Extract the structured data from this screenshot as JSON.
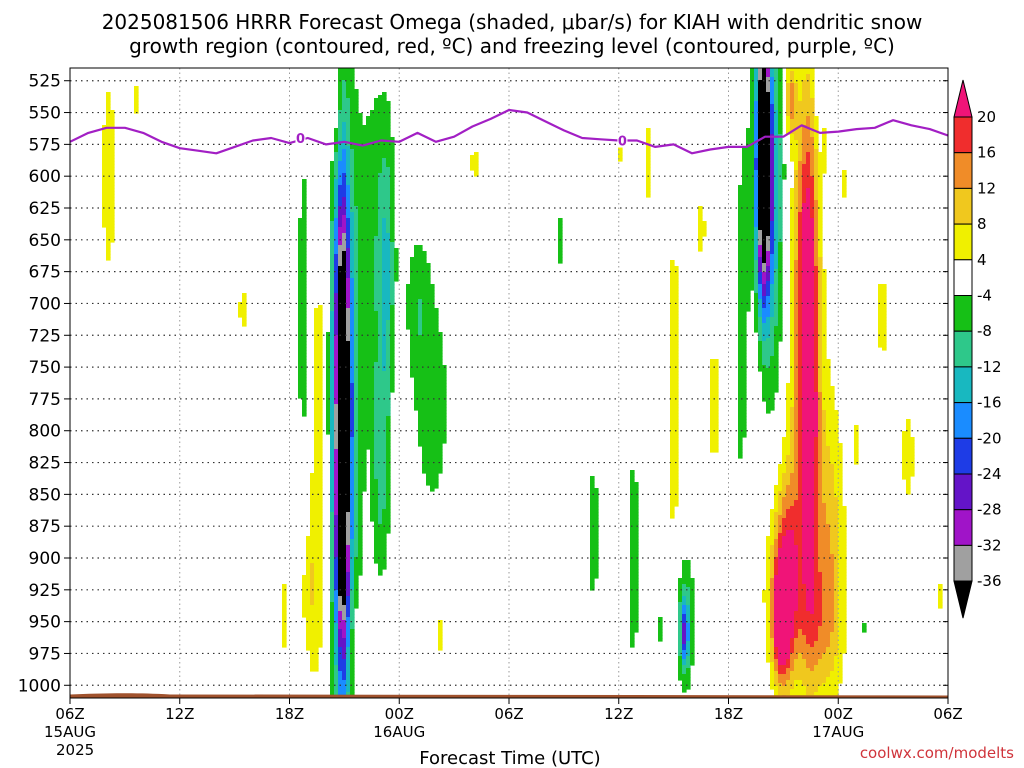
{
  "title": {
    "line1": "2025081506 HRRR Forecast Omega (shaded, μbar/s) for KIAH with dendritic snow",
    "line2": "growth region (contoured, red, ºC) and freezing level (contoured, purple, ºC)"
  },
  "credit": "coolwx.com/modelts",
  "colors": {
    "freezing_level": "#a21fc4",
    "ground": "#a0522d",
    "grid": "#333333"
  },
  "chart_data": {
    "type": "heatmap",
    "xlabel": "Forecast Time (UTC)",
    "ylabel": "",
    "x_ticks": [
      {
        "label": "06Z",
        "sub": "15AUG",
        "sub2": "2025",
        "hour": 0
      },
      {
        "label": "12Z",
        "sub": "",
        "sub2": "",
        "hour": 6
      },
      {
        "label": "18Z",
        "sub": "",
        "sub2": "",
        "hour": 12
      },
      {
        "label": "00Z",
        "sub": "16AUG",
        "sub2": "",
        "hour": 18
      },
      {
        "label": "06Z",
        "sub": "",
        "sub2": "",
        "hour": 24
      },
      {
        "label": "12Z",
        "sub": "",
        "sub2": "",
        "hour": 30
      },
      {
        "label": "18Z",
        "sub": "",
        "sub2": "",
        "hour": 36
      },
      {
        "label": "00Z",
        "sub": "17AUG",
        "sub2": "",
        "hour": 42
      },
      {
        "label": "06Z",
        "sub": "",
        "sub2": "",
        "hour": 48
      }
    ],
    "xlim": [
      0,
      48
    ],
    "y_ticks": [
      525,
      550,
      575,
      600,
      625,
      650,
      675,
      700,
      725,
      750,
      775,
      800,
      825,
      850,
      875,
      900,
      925,
      950,
      975,
      1000
    ],
    "ylim": [
      1010,
      515
    ],
    "y_units": "hPa",
    "colorbar": {
      "labels": [
        "20",
        "16",
        "12",
        "8",
        "4",
        "-4",
        "-8",
        "-12",
        "-16",
        "-20",
        "-24",
        "-28",
        "-32",
        "-36"
      ],
      "bins": [
        {
          "color": "#f0f000",
          "range": [
            4,
            8
          ]
        },
        {
          "color": "#f0c81e",
          "range": [
            8,
            12
          ]
        },
        {
          "color": "#f08c28",
          "range": [
            12,
            16
          ]
        },
        {
          "color": "#f02d2d",
          "range": [
            16,
            20
          ]
        },
        {
          "color": "#f01478",
          "range": [
            20,
            99
          ]
        },
        {
          "color": "#ffffff",
          "range": [
            -4,
            4
          ]
        },
        {
          "color": "#16c016",
          "range": [
            -8,
            -4
          ]
        },
        {
          "color": "#2ec88a",
          "range": [
            -12,
            -8
          ]
        },
        {
          "color": "#18b8c0",
          "range": [
            -16,
            -12
          ]
        },
        {
          "color": "#1a8cff",
          "range": [
            -20,
            -16
          ]
        },
        {
          "color": "#1e3ce6",
          "range": [
            -24,
            -20
          ]
        },
        {
          "color": "#6414c8",
          "range": [
            -28,
            -24
          ]
        },
        {
          "color": "#a014c8",
          "range": [
            -32,
            -28
          ]
        },
        {
          "color": "#a0a0a0",
          "range": [
            -36,
            -32
          ]
        },
        {
          "color": "#000000",
          "range": [
            -99,
            -36
          ]
        }
      ]
    },
    "omega_regions": [
      {
        "t": 2.1,
        "p": 600,
        "hw": 0.5,
        "hh": 110,
        "peak": 6
      },
      {
        "t": 3.6,
        "p": 540,
        "hw": 0.25,
        "hh": 25,
        "peak": 5
      },
      {
        "t": 9.5,
        "p": 705,
        "hw": 0.5,
        "hh": 30,
        "peak": 5
      },
      {
        "t": 11.7,
        "p": 945,
        "hw": 0.4,
        "hh": 55,
        "peak": 5
      },
      {
        "t": 12.8,
        "p": 705,
        "hw": 0.5,
        "hh": 190,
        "peak": -6
      },
      {
        "t": 13.3,
        "p": 810,
        "hw": 0.4,
        "hh": 230,
        "peak": 5
      },
      {
        "t": 13.0,
        "p": 925,
        "hw": 0.55,
        "hh": 60,
        "peak": 6
      },
      {
        "t": 13.8,
        "p": 800,
        "hw": 0.45,
        "hh": 240,
        "peak": 6
      },
      {
        "t": 15.0,
        "p": 770,
        "hw": 1.1,
        "hh": 250,
        "peak": -10
      },
      {
        "t": 14.9,
        "p": 790,
        "hw": 0.6,
        "hh": 210,
        "peak": -20
      },
      {
        "t": 14.9,
        "p": 810,
        "hw": 0.33,
        "hh": 165,
        "peak": -40
      },
      {
        "t": 16.8,
        "p": 640,
        "hw": 1.0,
        "hh": 145,
        "peak": -6
      },
      {
        "t": 17.0,
        "p": 830,
        "hw": 0.5,
        "hh": 100,
        "peak": -9
      },
      {
        "t": 17.3,
        "p": 680,
        "hw": 0.45,
        "hh": 110,
        "peak": -9
      },
      {
        "t": 14.4,
        "p": 550,
        "hw": 0.4,
        "hh": 35,
        "peak": 6
      },
      {
        "t": 16.5,
        "p": 955,
        "hw": 1.3,
        "hh": 30,
        "peak": 5
      },
      {
        "t": 18.0,
        "p": 770,
        "hw": 0.35,
        "hh": 50,
        "peak": 5
      },
      {
        "t": 19.8,
        "p": 780,
        "hw": 1.2,
        "hh": 110,
        "peak": -6
      },
      {
        "t": 19.0,
        "p": 700,
        "hw": 0.7,
        "hh": 60,
        "peak": -6
      },
      {
        "t": 21.1,
        "p": 845,
        "hw": 0.35,
        "hh": 30,
        "peak": 5
      },
      {
        "t": 20.2,
        "p": 960,
        "hw": 0.35,
        "hh": 30,
        "peak": 5
      },
      {
        "t": 22.1,
        "p": 590,
        "hw": 0.3,
        "hh": 30,
        "peak": 5
      },
      {
        "t": 26.8,
        "p": 650,
        "hw": 0.2,
        "hh": 30,
        "peak": -6
      },
      {
        "t": 28.6,
        "p": 880,
        "hw": 0.4,
        "hh": 75,
        "peak": -6
      },
      {
        "t": 30.1,
        "p": 580,
        "hw": 0.2,
        "hh": 20,
        "peak": 5
      },
      {
        "t": 30.8,
        "p": 900,
        "hw": 0.4,
        "hh": 120,
        "peak": -6
      },
      {
        "t": 33.0,
        "p": 770,
        "hw": 0.5,
        "hh": 180,
        "peak": 6
      },
      {
        "t": 34.5,
        "p": 640,
        "hw": 0.35,
        "hh": 40,
        "peak": 5
      },
      {
        "t": 35.2,
        "p": 780,
        "hw": 0.55,
        "hh": 90,
        "peak": 5
      },
      {
        "t": 33.6,
        "p": 950,
        "hw": 0.55,
        "hh": 55,
        "peak": -11
      },
      {
        "t": 33.6,
        "p": 960,
        "hw": 0.22,
        "hh": 25,
        "peak": -16
      },
      {
        "t": 32.3,
        "p": 955,
        "hw": 0.2,
        "hh": 18,
        "peak": -6
      },
      {
        "t": 31.6,
        "p": 590,
        "hw": 0.3,
        "hh": 60,
        "peak": 5
      },
      {
        "t": 36.8,
        "p": 730,
        "hw": 0.6,
        "hh": 240,
        "peak": -6
      },
      {
        "t": 37.5,
        "p": 760,
        "hw": 0.7,
        "hh": 260,
        "peak": 5
      },
      {
        "t": 38.3,
        "p": 660,
        "hw": 1.0,
        "hh": 200,
        "peak": -12
      },
      {
        "t": 38.0,
        "p": 600,
        "hw": 0.6,
        "hh": 100,
        "peak": -22
      },
      {
        "t": 37.9,
        "p": 570,
        "hw": 0.32,
        "hh": 110,
        "peak": -40
      },
      {
        "t": 39.4,
        "p": 540,
        "hw": 0.3,
        "hh": 30,
        "peak": 14
      },
      {
        "t": 39.8,
        "p": 800,
        "hw": 1.6,
        "hh": 240,
        "peak": 7
      },
      {
        "t": 40.1,
        "p": 680,
        "hw": 0.6,
        "hh": 160,
        "peak": 13
      },
      {
        "t": 40.5,
        "p": 760,
        "hw": 0.5,
        "hh": 200,
        "peak": 17
      },
      {
        "t": 39.2,
        "p": 910,
        "hw": 0.9,
        "hh": 75,
        "peak": 18
      },
      {
        "t": 38.9,
        "p": 950,
        "hw": 0.5,
        "hh": 45,
        "peak": 24
      },
      {
        "t": 40.8,
        "p": 950,
        "hw": 1.3,
        "hh": 50,
        "peak": 6
      },
      {
        "t": 41.5,
        "p": 900,
        "hw": 0.9,
        "hh": 120,
        "peak": 10
      },
      {
        "t": 41.0,
        "p": 540,
        "hw": 0.3,
        "hh": 30,
        "peak": -6
      },
      {
        "t": 41.3,
        "p": 565,
        "hw": 0.2,
        "hh": 35,
        "peak": 5
      },
      {
        "t": 42.4,
        "p": 605,
        "hw": 0.2,
        "hh": 40,
        "peak": 5
      },
      {
        "t": 43.0,
        "p": 810,
        "hw": 0.25,
        "hh": 30,
        "peak": 5
      },
      {
        "t": 43.3,
        "p": 955,
        "hw": 0.2,
        "hh": 12,
        "peak": -6
      },
      {
        "t": 45.8,
        "p": 820,
        "hw": 0.6,
        "hh": 65,
        "peak": 5
      },
      {
        "t": 44.4,
        "p": 710,
        "hw": 0.7,
        "hh": 60,
        "peak": 5
      },
      {
        "t": 47.5,
        "p": 930,
        "hw": 0.3,
        "hh": 25,
        "peak": 5
      }
    ],
    "freezing_level": {
      "label": "0",
      "label_points": [
        {
          "hour": 12.6,
          "hpa": 570
        },
        {
          "hour": 30.2,
          "hpa": 572
        }
      ],
      "hours": [
        0,
        1,
        2,
        3,
        4,
        5,
        6,
        7,
        8,
        9,
        10,
        11,
        12,
        13,
        14,
        15,
        16,
        17,
        18,
        19,
        20,
        21,
        22,
        23,
        24,
        25,
        26,
        27,
        28,
        29,
        30,
        31,
        32,
        33,
        34,
        35,
        36,
        37,
        38,
        39,
        40,
        41,
        42,
        43,
        44,
        45,
        46,
        47,
        48
      ],
      "hpa": [
        573,
        566,
        562,
        562,
        566,
        573,
        578,
        580,
        582,
        577,
        572,
        570,
        574,
        570,
        575,
        573,
        576,
        572,
        573,
        566,
        573,
        569,
        561,
        555,
        548,
        550,
        557,
        564,
        570,
        571,
        572,
        572,
        577,
        575,
        582,
        579,
        577,
        577,
        569,
        569,
        560,
        566,
        565,
        563,
        562,
        556,
        560,
        563,
        568
      ]
    },
    "ground_hpa": 1008
  }
}
